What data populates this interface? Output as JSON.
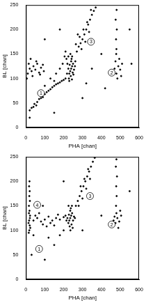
{
  "chart_data": [
    {
      "type": "scatter",
      "x_label": "PHA [chan]",
      "y_label": "BL [chan]",
      "xlim": [
        0,
        600
      ],
      "ylim": [
        0,
        250
      ],
      "xticks": [
        0,
        100,
        200,
        300,
        400,
        500,
        600
      ],
      "yticks": [
        0,
        50,
        100,
        150,
        200,
        250
      ],
      "grid": false,
      "color": "#000000",
      "marker": "circle",
      "x": [
        240,
        235,
        245,
        230,
        250,
        225,
        255,
        240,
        238,
        248,
        232,
        242,
        228,
        260,
        220,
        236,
        225,
        215,
        245,
        252,
        230,
        262,
        218,
        244,
        30,
        45,
        60,
        80,
        100,
        120,
        140,
        160,
        180,
        200,
        210,
        55,
        90,
        130,
        170,
        190,
        110,
        150,
        70,
        40,
        20,
        100,
        130,
        160,
        180,
        195,
        205,
        210,
        150,
        270,
        280,
        290,
        300,
        310,
        320,
        330,
        340,
        350,
        360,
        370,
        285,
        305,
        325,
        345,
        295,
        315,
        335,
        265,
        275,
        10,
        20,
        30,
        40,
        50,
        60,
        70,
        80,
        90,
        15,
        35,
        55,
        75,
        95,
        25,
        5,
        460,
        470,
        480,
        490,
        500,
        510,
        475,
        485,
        495,
        505,
        480,
        478,
        482,
        476,
        481,
        479,
        150,
        300,
        400,
        420,
        350,
        550,
        180,
        100,
        20,
        560,
        320
      ],
      "values": [
        120,
        115,
        125,
        110,
        130,
        120,
        118,
        135,
        105,
        112,
        128,
        140,
        100,
        125,
        130,
        150,
        145,
        140,
        145,
        108,
        95,
        135,
        110,
        98,
        40,
        48,
        52,
        60,
        68,
        75,
        82,
        88,
        92,
        97,
        100,
        45,
        62,
        78,
        90,
        95,
        72,
        85,
        58,
        42,
        35,
        85,
        100,
        110,
        120,
        130,
        145,
        155,
        95,
        155,
        165,
        172,
        180,
        190,
        200,
        210,
        220,
        230,
        238,
        245,
        185,
        200,
        215,
        240,
        160,
        175,
        195,
        170,
        190,
        110,
        120,
        115,
        125,
        118,
        130,
        112,
        122,
        128,
        130,
        105,
        135,
        108,
        115,
        140,
        100,
        115,
        120,
        110,
        125,
        118,
        130,
        135,
        100,
        140,
        105,
        160,
        180,
        200,
        220,
        240,
        150,
        30,
        60,
        150,
        80,
        120,
        200,
        200,
        180,
        20,
        130,
        90
      ],
      "annotations": [
        {
          "text": "1",
          "x": 80,
          "y": 70
        },
        {
          "text": "3",
          "x": 345,
          "y": 175
        },
        {
          "text": "2",
          "x": 455,
          "y": 112
        }
      ]
    },
    {
      "type": "scatter",
      "x_label": "PHA [chan]",
      "y_label": "BL [chan]",
      "xlim": [
        0,
        600
      ],
      "ylim": [
        0,
        250
      ],
      "xticks": [
        0,
        100,
        200,
        300,
        400,
        500,
        600
      ],
      "yticks": [
        0,
        50,
        100,
        150,
        200,
        250
      ],
      "grid": false,
      "color": "#000000",
      "marker": "circle",
      "x": [
        15,
        18,
        20,
        17,
        22,
        19,
        16,
        21,
        18,
        20,
        17,
        19,
        23,
        14,
        21,
        16,
        40,
        60,
        80,
        100,
        120,
        140,
        160,
        180,
        200,
        50,
        90,
        130,
        170,
        70,
        110,
        150,
        235,
        230,
        240,
        225,
        245,
        220,
        250,
        235,
        232,
        242,
        228,
        238,
        255,
        215,
        248,
        236,
        226,
        244,
        260,
        210,
        265,
        275,
        285,
        295,
        305,
        315,
        325,
        335,
        345,
        355,
        365,
        290,
        310,
        330,
        280,
        300,
        320,
        340,
        465,
        475,
        485,
        495,
        505,
        480,
        490,
        500,
        470,
        478,
        481,
        479,
        483,
        477,
        480,
        60,
        100,
        150,
        180,
        200,
        120,
        40,
        300,
        400,
        550,
        90,
        200,
        30
      ],
      "values": [
        95,
        100,
        110,
        120,
        130,
        140,
        150,
        160,
        170,
        180,
        190,
        200,
        105,
        115,
        125,
        135,
        120,
        125,
        118,
        122,
        128,
        120,
        125,
        122,
        127,
        130,
        112,
        115,
        132,
        135,
        108,
        110,
        125,
        120,
        130,
        115,
        135,
        125,
        120,
        140,
        108,
        112,
        132,
        145,
        128,
        120,
        105,
        100,
        150,
        150,
        125,
        130,
        150,
        160,
        170,
        180,
        190,
        200,
        210,
        220,
        230,
        240,
        248,
        190,
        205,
        225,
        150,
        165,
        185,
        205,
        120,
        115,
        125,
        118,
        130,
        135,
        105,
        140,
        128,
        150,
        170,
        190,
        210,
        230,
        245,
        60,
        40,
        70,
        90,
        100,
        85,
        90,
        100,
        130,
        180,
        150,
        200,
        50
      ],
      "annotations": [
        {
          "text": "1",
          "x": 70,
          "y": 62
        },
        {
          "text": "4",
          "x": 60,
          "y": 152
        },
        {
          "text": "3",
          "x": 340,
          "y": 170
        },
        {
          "text": "2",
          "x": 455,
          "y": 112
        }
      ]
    }
  ]
}
